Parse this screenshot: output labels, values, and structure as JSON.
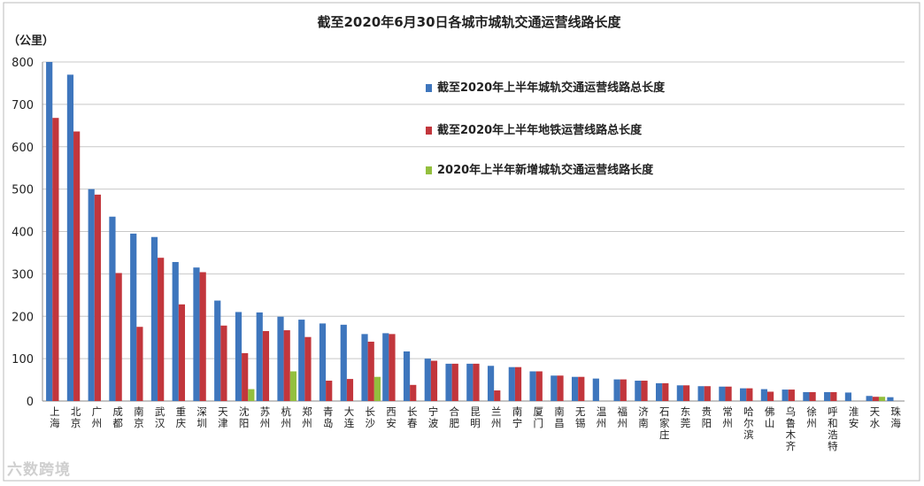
{
  "chart_data": {
    "type": "bar",
    "title": "截至2020年6月30日各城市城轨交通运营线路长度",
    "ylabel": "（公里）",
    "xlabel": "",
    "ylim": [
      0,
      800
    ],
    "yticks": [
      0,
      100,
      200,
      300,
      400,
      500,
      600,
      700,
      800
    ],
    "grid": true,
    "legend_position": "right",
    "categories": [
      "上海",
      "北京",
      "广州",
      "成都",
      "南京",
      "武汉",
      "重庆",
      "深圳",
      "天津",
      "沈阳",
      "苏州",
      "杭州",
      "郑州",
      "青岛",
      "大连",
      "长沙",
      "西安",
      "长春",
      "宁波",
      "合肥",
      "昆明",
      "兰州",
      "南宁",
      "厦门",
      "南昌",
      "无锡",
      "温州",
      "福州",
      "济南",
      "石家庄",
      "东莞",
      "贵阳",
      "常州",
      "哈尔滨",
      "佛山",
      "乌鲁木齐",
      "徐州",
      "呼和浩特",
      "淮安",
      "天水",
      "珠海"
    ],
    "series": [
      {
        "name": "截至2020年上半年城轨交通运营线路总长度",
        "color": "#3e76bd",
        "values": [
          800,
          770,
          500,
          435,
          395,
          387,
          328,
          315,
          237,
          210,
          209,
          199,
          192,
          183,
          180,
          158,
          160,
          117,
          100,
          88,
          88,
          83,
          80,
          70,
          60,
          57,
          53,
          51,
          48,
          42,
          37,
          35,
          34,
          30,
          28,
          27,
          21,
          21,
          20,
          12,
          9
        ]
      },
      {
        "name": "截至2020年上半年地铁运营线路总长度",
        "color": "#c2363c",
        "values": [
          668,
          636,
          487,
          302,
          175,
          338,
          228,
          304,
          178,
          113,
          165,
          167,
          151,
          48,
          52,
          140,
          158,
          38,
          95,
          88,
          88,
          25,
          80,
          70,
          60,
          57,
          0,
          51,
          48,
          42,
          37,
          35,
          34,
          30,
          22,
          27,
          21,
          21,
          0,
          10,
          0
        ]
      },
      {
        "name": "2020年上半年新增城轨交通运营线路长度",
        "color": "#93bf3e",
        "values": [
          0,
          0,
          0,
          0,
          0,
          0,
          0,
          0,
          0,
          28,
          0,
          70,
          0,
          0,
          0,
          57,
          0,
          0,
          0,
          0,
          0,
          0,
          0,
          0,
          0,
          0,
          0,
          0,
          0,
          0,
          0,
          0,
          0,
          0,
          0,
          0,
          0,
          0,
          0,
          10,
          0
        ]
      }
    ]
  },
  "watermark": "六数跨境"
}
